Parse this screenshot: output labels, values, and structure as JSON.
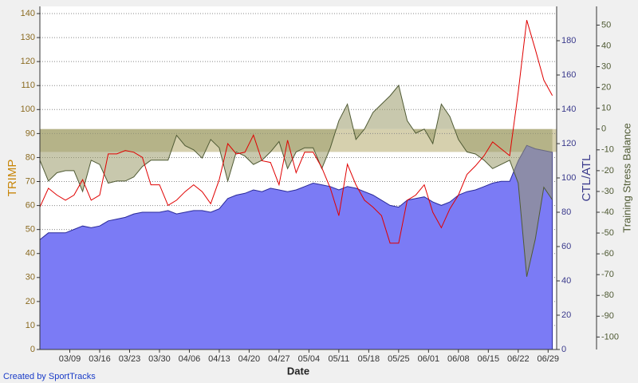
{
  "chart_data": {
    "type": "line",
    "xlabel": "Date",
    "ylabel": "TRIMP",
    "y2label": "CTL/ATL",
    "y3label": "Training Stress Balance",
    "credit": "Created by SportTracks",
    "x": [
      "03/02",
      "03/04",
      "03/06",
      "03/08",
      "03/10",
      "03/12",
      "03/14",
      "03/16",
      "03/18",
      "03/20",
      "03/22",
      "03/24",
      "03/26",
      "03/28",
      "03/30",
      "04/01",
      "04/03",
      "04/05",
      "04/07",
      "04/09",
      "04/11",
      "04/13",
      "04/15",
      "04/17",
      "04/19",
      "04/21",
      "04/23",
      "04/25",
      "04/27",
      "04/29",
      "05/01",
      "05/03",
      "05/05",
      "05/07",
      "05/09",
      "05/11",
      "05/13",
      "05/15",
      "05/17",
      "05/19",
      "05/21",
      "05/23",
      "05/25",
      "05/27",
      "05/29",
      "05/31",
      "06/02",
      "06/04",
      "06/06",
      "06/08",
      "06/10",
      "06/12",
      "06/14",
      "06/16",
      "06/18",
      "06/20",
      "06/22",
      "06/24",
      "06/26",
      "06/28",
      "06/30"
    ],
    "xlim": [
      "03/02",
      "07/01"
    ],
    "xticks": [
      "03/09",
      "03/16",
      "03/23",
      "03/30",
      "04/06",
      "04/13",
      "04/20",
      "04/27",
      "05/04",
      "05/11",
      "05/18",
      "05/25",
      "06/01",
      "06/08",
      "06/15",
      "06/22",
      "06/29"
    ],
    "ylim": [
      0,
      143
    ],
    "yticks": [
      0,
      10,
      20,
      30,
      40,
      50,
      60,
      70,
      80,
      90,
      100,
      110,
      120,
      130,
      140
    ],
    "y2lim": [
      0,
      200
    ],
    "y2ticks": [
      0,
      20,
      40,
      60,
      80,
      100,
      120,
      140,
      160,
      180
    ],
    "y3lim": [
      -106,
      59
    ],
    "y3ticks": [
      -100,
      -90,
      -80,
      -70,
      -60,
      -50,
      -40,
      -30,
      -20,
      -10,
      0,
      10,
      20,
      30,
      40,
      50
    ],
    "grid": true,
    "band": {
      "axis": "y3",
      "from": -11,
      "to": 0,
      "color": "#d6d0ae"
    },
    "series": [
      {
        "kind": "area",
        "axis": "y2",
        "color": "#7b7bf5",
        "stroke": "#2a2a9a",
        "values": [
          64,
          68,
          68,
          68,
          70,
          72,
          71,
          72,
          75,
          76,
          77,
          79,
          80,
          80,
          80,
          81,
          79,
          80,
          81,
          81,
          80,
          82,
          88,
          90,
          91,
          93,
          92,
          94,
          93,
          92,
          93,
          95,
          97,
          96,
          95,
          93,
          95,
          94,
          92,
          90,
          87,
          84,
          83,
          87,
          88,
          89,
          86,
          84,
          86,
          90,
          92,
          93,
          95,
          97,
          98,
          98,
          110,
          119,
          117,
          116,
          115
        ]
      },
      {
        "kind": "line",
        "axis": "y2",
        "color": "#e00000",
        "values": [
          83,
          94,
          90,
          87,
          90,
          99,
          87,
          90,
          114,
          114,
          116,
          115,
          112,
          96,
          96,
          84,
          87,
          92,
          96,
          92,
          85,
          99,
          120,
          114,
          115,
          125,
          110,
          109,
          96,
          122,
          103,
          115,
          115,
          106,
          94,
          78,
          108,
          96,
          87,
          83,
          78,
          62,
          62,
          87,
          90,
          96,
          80,
          71,
          82,
          90,
          102,
          107,
          113,
          121,
          117,
          113,
          150,
          192,
          175,
          157,
          148
        ]
      },
      {
        "kind": "area-zero",
        "axis": "y3",
        "color": "#9a9a6a",
        "stroke": "#4f5a34",
        "values": [
          -15,
          -25,
          -21,
          -20,
          -20,
          -30,
          -15,
          -17,
          -26,
          -25,
          -25,
          -23,
          -18,
          -15,
          -15,
          -15,
          -3,
          -8,
          -10,
          -14,
          -5,
          -9,
          -25,
          -11,
          -13,
          -17,
          -15,
          -11,
          -6,
          -19,
          -11,
          -9,
          -9,
          -19,
          -9,
          4,
          12,
          -5,
          0,
          8,
          12,
          16,
          21,
          4,
          -2,
          0,
          -7,
          12,
          6,
          -5,
          -11,
          -12,
          -15,
          -19,
          -17,
          -15,
          -26,
          -71,
          -53,
          -28,
          -34
        ]
      }
    ]
  }
}
